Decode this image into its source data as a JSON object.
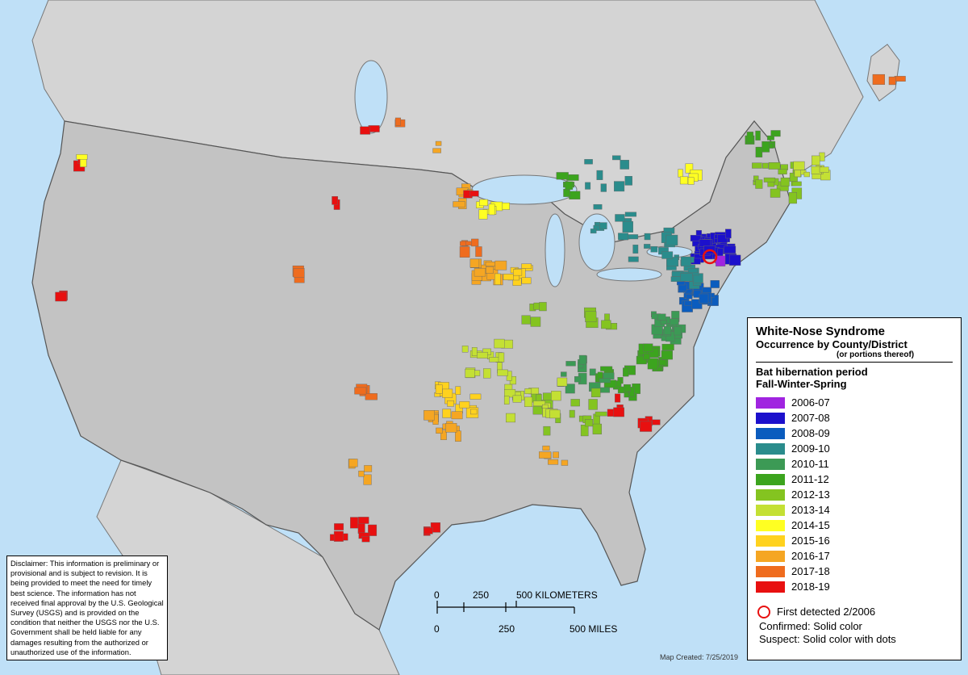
{
  "legend": {
    "title": "White-Nose Syndrome",
    "subtitle": "Occurrence by County/District",
    "note": "(or portions thereof)",
    "period_title": "Bat hibernation period",
    "period_subtitle": "Fall-Winter-Spring",
    "items": [
      {
        "label": "2006-07",
        "color": "#a024e0"
      },
      {
        "label": "2007-08",
        "color": "#1c10cc"
      },
      {
        "label": "2008-09",
        "color": "#0b5cbe"
      },
      {
        "label": "2009-10",
        "color": "#2a8c8c"
      },
      {
        "label": "2010-11",
        "color": "#3c9a55"
      },
      {
        "label": "2011-12",
        "color": "#3ca41e"
      },
      {
        "label": "2012-13",
        "color": "#84c420"
      },
      {
        "label": "2013-14",
        "color": "#c4e034"
      },
      {
        "label": "2014-15",
        "color": "#ffff22"
      },
      {
        "label": "2015-16",
        "color": "#ffd21e"
      },
      {
        "label": "2016-17",
        "color": "#f5a623"
      },
      {
        "label": "2017-18",
        "color": "#ef6c1e"
      },
      {
        "label": "2018-19",
        "color": "#e81010"
      }
    ],
    "first_detected": "First detected 2/2006",
    "confirmed": "Confirmed:  Solid color",
    "suspect": "Suspect:  Solid color with dots"
  },
  "disclaimer": "Disclaimer: This information is preliminary or provisional and is subject to revision. It is being provided to meet the need for timely best science. The information has not received final approval by the U.S. Geological Survey (USGS) and is provided on the condition that neither the USGS nor the U.S. Government shall be held liable for any damages resulting from the authorized or unauthorized use of the information.",
  "scale": {
    "km_labels": [
      "0",
      "250",
      "500 KILOMETERS"
    ],
    "mile_labels": [
      "0",
      "250",
      "500 MILES"
    ]
  },
  "map_created": "Map Created:  7/25/2019"
}
